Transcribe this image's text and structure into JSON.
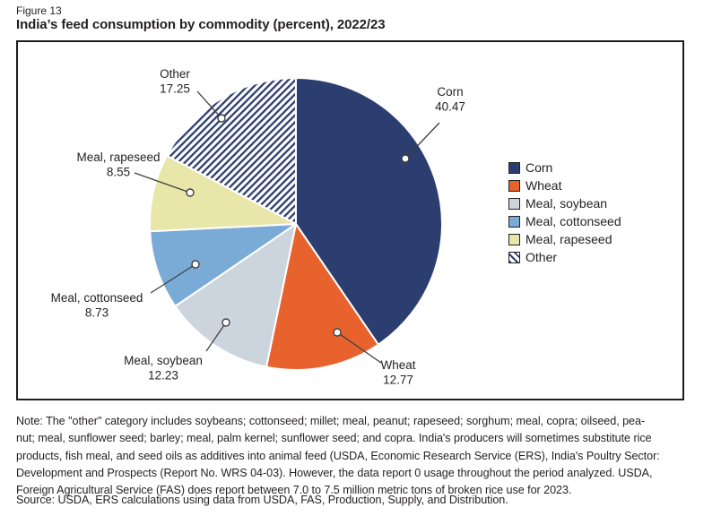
{
  "header": {
    "figure_label": "Figure 13",
    "title": "India’s feed consumption by commodity (percent), 2022/23"
  },
  "chart_data": {
    "type": "pie",
    "title": "India’s feed consumption by commodity (percent), 2022/23",
    "unit": "percent",
    "categories": [
      "Corn",
      "Wheat",
      "Meal, soybean",
      "Meal, cottonseed",
      "Meal, rapeseed",
      "Other"
    ],
    "values": [
      40.47,
      12.77,
      12.23,
      8.73,
      8.55,
      17.25
    ],
    "value_labels": [
      "40.47",
      "12.77",
      "12.23",
      "8.73",
      "8.55",
      "17.25"
    ],
    "colors": [
      "#2c3d6f",
      "#e8622d",
      "#ccd5dd",
      "#7aaad6",
      "#e9e6aa",
      "hatch"
    ],
    "hatch": {
      "color": "#2c3d6f",
      "background": "#ffffff"
    },
    "start_angle": 0,
    "direction": "clockwise",
    "legend_position": "right",
    "slice_stroke": "#ffffff",
    "callout_line_color": "#404040",
    "text_color": "#231f20"
  },
  "notes": {
    "note_text": "Note: The \"other\" category includes soybeans; cottonseed; millet; meal, peanut; rapeseed; sorghum; meal, copra; oilseed, pea-\nnut; meal, sunflower seed; barley; meal, palm kernel; sunflower seed; and copra. India's producers will sometimes substitute rice\nproducts, fish meal, and seed oils as additives into animal feed (USDA, Economic Research Service (ERS), India's Poultry Sector:\nDevelopment and Prospects (Report No. WRS 04-03). However, the data report 0 usage throughout the period analyzed. USDA,\nForeign Agricultural Service (FAS) does report between 7.0 to 7.5 million metric tons of broken rice use for 2023.",
    "source_text": "Source: USDA, ERS calculations using data from USDA, FAS, Production, Supply, and Distribution."
  }
}
